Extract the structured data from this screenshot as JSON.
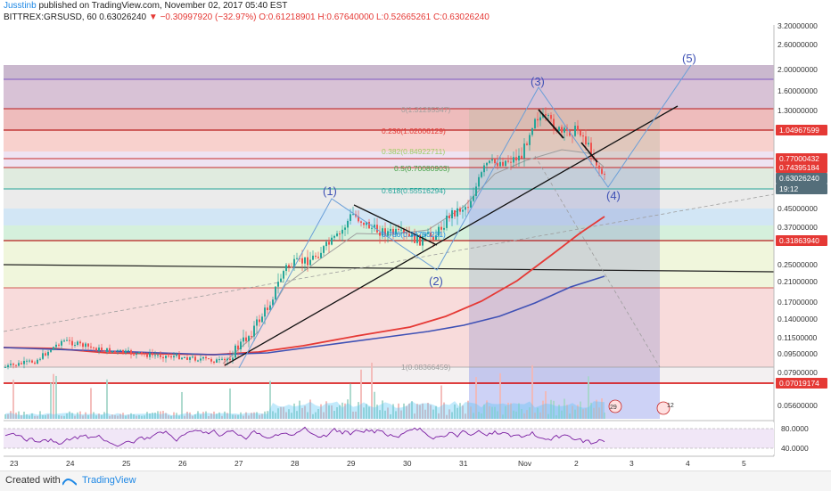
{
  "header": {
    "author": "Jusstinb",
    "published": "published on TradingView.com, November 02, 2017 05:40 EST",
    "symbol": "BITTREX:GRSUSD, 60",
    "last": "0.63026240",
    "change": "−0.30997920 (−32.97%)",
    "ohlc": "O:0.61218901 H:0.67640000 L:0.52665261 C:0.63026240"
  },
  "footer": {
    "created": "Created with",
    "brand": "TradingView"
  },
  "colors": {
    "up": "#26a69a",
    "down": "#ef5350",
    "ma_red": "#e53935",
    "ma_blue": "#3f51b5",
    "ma_gray": "#9e9e9e",
    "wave": "#6a9fd8",
    "rsi": "#7b1fa2"
  },
  "chart_data": {
    "type": "candlestick",
    "x_ticks": [
      "23",
      "24",
      "25",
      "26",
      "27",
      "28",
      "29",
      "30",
      "31",
      "Nov",
      "2",
      "3",
      "4",
      "5"
    ],
    "price_ticks": [
      "3.20000000",
      "2.60000000",
      "2.00000000",
      "1.60000000",
      "1.30000000",
      "0.77000000",
      "0.55000000",
      "0.45000000",
      "0.37000000",
      "0.25000000",
      "0.21000000",
      "0.17000000",
      "0.14000000",
      "0.11500000",
      "0.09500000",
      "0.07900000",
      "0.05600000"
    ],
    "price_badges": [
      {
        "value": "1.04967599",
        "color": "#e53935"
      },
      {
        "value": "0.77000432",
        "color": "#e53935"
      },
      {
        "value": "0.74395184",
        "color": "#e53935"
      },
      {
        "value": "0.63026240",
        "color": "#546e7a"
      },
      {
        "value": "19:12",
        "color": "#546e7a"
      },
      {
        "value": "0.31863940",
        "color": "#e53935"
      },
      {
        "value": "0.07019174",
        "color": "#e53935"
      }
    ],
    "fib_levels": [
      {
        "ratio": "0",
        "label": "0(1.31295347)",
        "price": 1.313,
        "color": "#9e9e9e"
      },
      {
        "ratio": "0.236",
        "label": "0.236(1.02006129)",
        "price": 1.02,
        "color": "#e53935"
      },
      {
        "ratio": "0.382",
        "label": "0.382(0.84922711)",
        "price": 0.849,
        "color": "#9ccc65"
      },
      {
        "ratio": "0.5",
        "label": "0.5(0.70080903)",
        "price": 0.701,
        "color": "#43a047"
      },
      {
        "ratio": "0.618",
        "label": "0.618(0.55516294)",
        "price": 0.555,
        "color": "#26a69a"
      },
      {
        "ratio": "0.786",
        "label": "0.786(0.34780231)",
        "price": 0.348,
        "color": "#1e88e5"
      },
      {
        "ratio": "1",
        "label": "1(0.08366459)",
        "price": 0.0837,
        "color": "#9e9e9e"
      }
    ],
    "wave_labels": [
      "(1)",
      "(2)",
      "(3)",
      "(4)",
      "(5)"
    ],
    "rsi_ticks": [
      "80.0000",
      "40.0000"
    ],
    "volume_badges": [
      "29",
      "12"
    ]
  }
}
